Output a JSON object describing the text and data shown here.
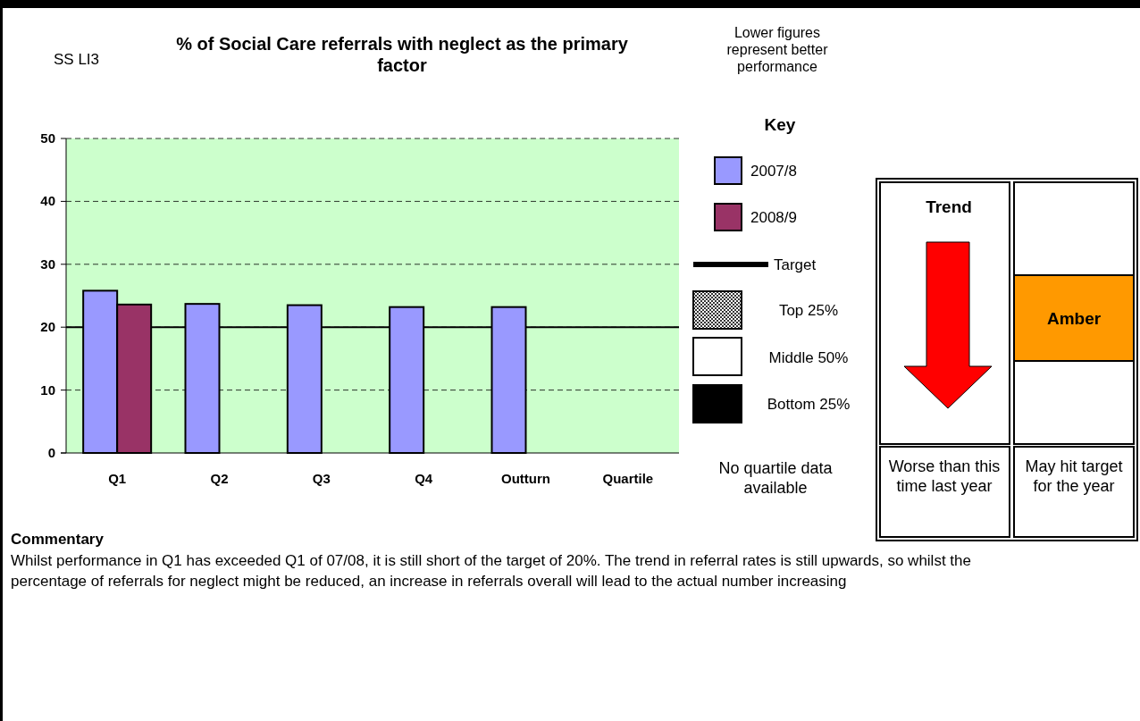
{
  "chart_data": {
    "type": "bar",
    "title": "% of Social Care referrals with neglect as the primary factor",
    "categories": [
      "Q1",
      "Q2",
      "Q3",
      "Q4",
      "Outturn",
      "Quartile"
    ],
    "series": [
      {
        "name": "2007/8",
        "color": "#9999ff",
        "values": [
          25.8,
          23.7,
          23.5,
          23.2,
          23.2,
          null
        ]
      },
      {
        "name": "2008/9",
        "color": "#993366",
        "values": [
          23.6,
          null,
          null,
          null,
          null,
          null
        ]
      }
    ],
    "ylim": [
      0,
      50
    ],
    "yticks": [
      0,
      10,
      20,
      30,
      40,
      50
    ],
    "grid": "y",
    "legend": "right",
    "ref_lines": [
      {
        "axis": "y",
        "value": 20,
        "label": "Target",
        "color": "#000000"
      }
    ],
    "annotations": [
      "SS LI3",
      "Lower figures represent better performance",
      "Key",
      "Top 25%",
      "Middle 50%",
      "Bottom 25%",
      "No quartile data available",
      "Trend",
      "Amber",
      "Worse than this time last year",
      "May hit target for the year",
      "Commentary",
      "Whilst performance in Q1 has exceeded Q1 of 07/08, it is still short of the target of 20%. The trend in referral rates is still upwards, so whilst the percentage of referrals for neglect might be reduced, an increase in referrals overall will lead to the actual number increasing"
    ]
  }
}
